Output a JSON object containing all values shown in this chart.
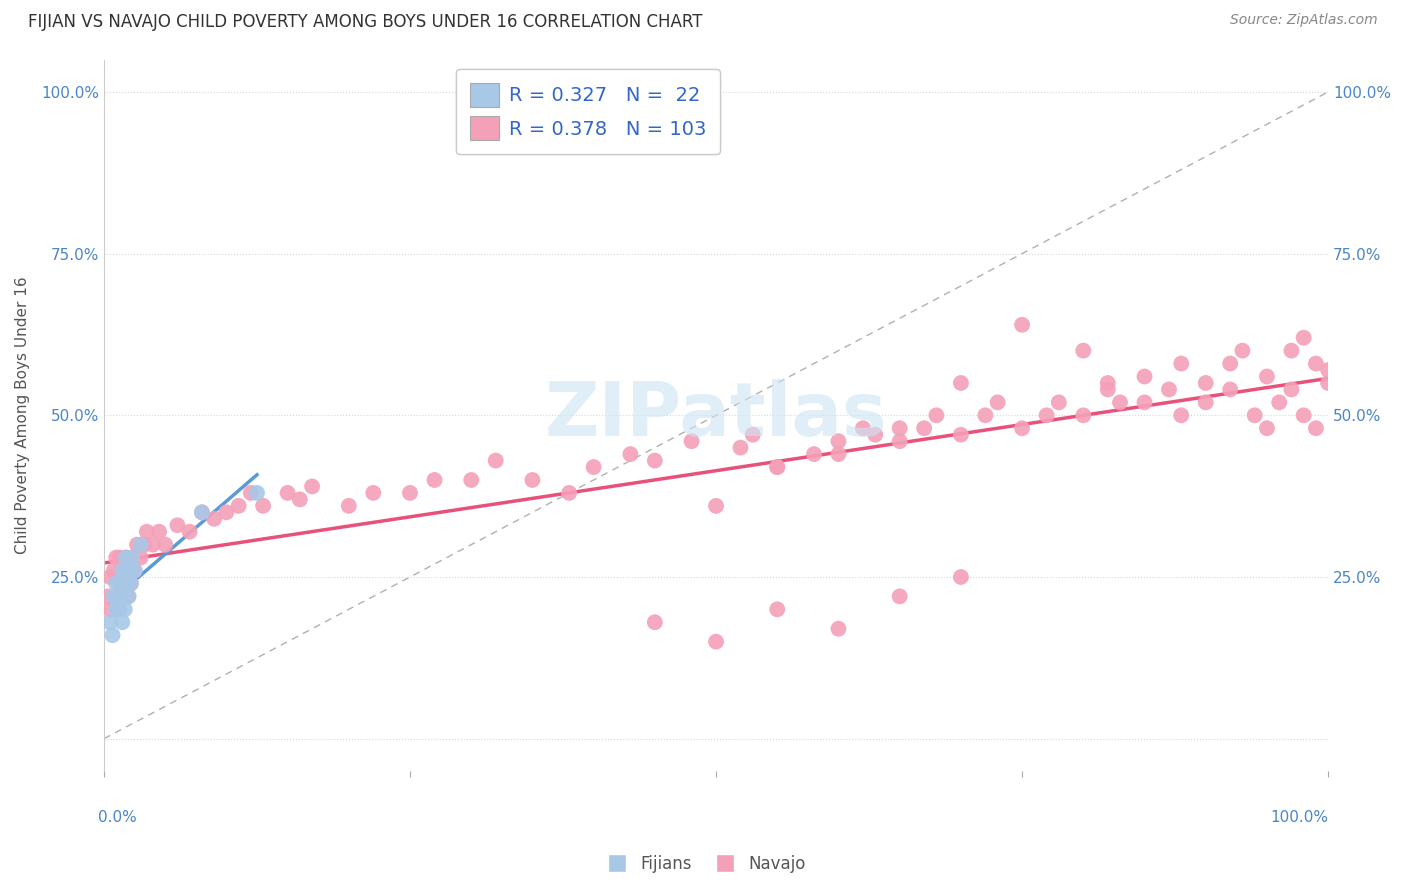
{
  "title": "FIJIAN VS NAVAJO CHILD POVERTY AMONG BOYS UNDER 16 CORRELATION CHART",
  "source": "Source: ZipAtlas.com",
  "ylabel": "Child Poverty Among Boys Under 16",
  "fijians_R": 0.327,
  "fijians_N": 22,
  "navajo_R": 0.378,
  "navajo_N": 103,
  "fijians_color": "#a8c8e8",
  "navajo_color": "#f4a0b8",
  "fijians_line_color": "#5b9bd5",
  "navajo_line_color": "#e8527a",
  "ref_line_color": "#b0b0b0",
  "watermark_color": "#cce4f4",
  "fijians_x": [
    0.005,
    0.007,
    0.008,
    0.01,
    0.01,
    0.012,
    0.013,
    0.013,
    0.015,
    0.015,
    0.015,
    0.017,
    0.018,
    0.018,
    0.02,
    0.02,
    0.022,
    0.023,
    0.025,
    0.03,
    0.08,
    0.125
  ],
  "fijians_y": [
    0.18,
    0.16,
    0.22,
    0.2,
    0.24,
    0.22,
    0.2,
    0.24,
    0.18,
    0.22,
    0.26,
    0.2,
    0.24,
    0.28,
    0.22,
    0.26,
    0.24,
    0.28,
    0.26,
    0.3,
    0.35,
    0.38
  ],
  "navajo_x": [
    0.003,
    0.005,
    0.005,
    0.008,
    0.01,
    0.01,
    0.012,
    0.013,
    0.013,
    0.015,
    0.015,
    0.017,
    0.018,
    0.02,
    0.02,
    0.022,
    0.023,
    0.025,
    0.027,
    0.03,
    0.033,
    0.035,
    0.04,
    0.045,
    0.05,
    0.06,
    0.07,
    0.08,
    0.09,
    0.1,
    0.11,
    0.12,
    0.13,
    0.15,
    0.16,
    0.17,
    0.2,
    0.22,
    0.25,
    0.27,
    0.3,
    0.32,
    0.35,
    0.38,
    0.4,
    0.43,
    0.45,
    0.48,
    0.5,
    0.52,
    0.53,
    0.55,
    0.58,
    0.6,
    0.62,
    0.63,
    0.65,
    0.67,
    0.68,
    0.7,
    0.72,
    0.73,
    0.75,
    0.77,
    0.78,
    0.8,
    0.82,
    0.83,
    0.85,
    0.87,
    0.88,
    0.9,
    0.92,
    0.93,
    0.95,
    0.97,
    0.98,
    0.99,
    1.0,
    0.55,
    0.6,
    0.65,
    0.7,
    0.75,
    0.8,
    0.82,
    0.85,
    0.88,
    0.9,
    0.92,
    0.94,
    0.95,
    0.96,
    0.97,
    0.98,
    0.99,
    1.0,
    0.45,
    0.5,
    0.55,
    0.6,
    0.65,
    0.7
  ],
  "navajo_y": [
    0.22,
    0.25,
    0.2,
    0.26,
    0.22,
    0.28,
    0.2,
    0.24,
    0.28,
    0.22,
    0.26,
    0.24,
    0.28,
    0.22,
    0.26,
    0.24,
    0.28,
    0.26,
    0.3,
    0.28,
    0.3,
    0.32,
    0.3,
    0.32,
    0.3,
    0.33,
    0.32,
    0.35,
    0.34,
    0.35,
    0.36,
    0.38,
    0.36,
    0.38,
    0.37,
    0.39,
    0.36,
    0.38,
    0.38,
    0.4,
    0.4,
    0.43,
    0.4,
    0.38,
    0.42,
    0.44,
    0.43,
    0.46,
    0.36,
    0.45,
    0.47,
    0.42,
    0.44,
    0.44,
    0.48,
    0.47,
    0.46,
    0.48,
    0.5,
    0.47,
    0.5,
    0.52,
    0.48,
    0.5,
    0.52,
    0.5,
    0.54,
    0.52,
    0.56,
    0.54,
    0.58,
    0.55,
    0.58,
    0.6,
    0.56,
    0.6,
    0.62,
    0.58,
    0.55,
    0.42,
    0.46,
    0.48,
    0.55,
    0.64,
    0.6,
    0.55,
    0.52,
    0.5,
    0.52,
    0.54,
    0.5,
    0.48,
    0.52,
    0.54,
    0.5,
    0.48,
    0.57,
    0.18,
    0.15,
    0.2,
    0.17,
    0.22,
    0.25
  ],
  "xlim": [
    0,
    1
  ],
  "ylim": [
    -0.05,
    1.05
  ],
  "yticks": [
    0.0,
    0.25,
    0.5,
    0.75,
    1.0
  ],
  "ytick_labels_left": [
    "",
    "25.0%",
    "50.0%",
    "75.0%",
    "100.0%"
  ],
  "ytick_labels_right": [
    "",
    "25.0%",
    "50.0%",
    "75.0%",
    "100.0%"
  ]
}
